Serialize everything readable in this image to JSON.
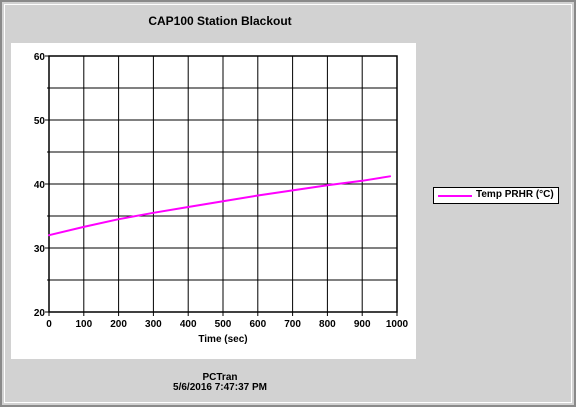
{
  "chart_data": {
    "type": "line",
    "title": "CAP100 Station Blackout",
    "xlabel": "Time (sec)",
    "ylabel": "",
    "xlim": [
      0,
      1000
    ],
    "ylim": [
      20,
      60
    ],
    "x_ticks": [
      0,
      100,
      200,
      300,
      400,
      500,
      600,
      700,
      800,
      900,
      1000
    ],
    "y_ticks": [
      20,
      30,
      40,
      50,
      60
    ],
    "grid": true,
    "legend_placement": "right",
    "series": [
      {
        "name": "Temp PRHR (°C)",
        "color": "#ff00ff",
        "x": [
          0,
          100,
          200,
          300,
          400,
          500,
          600,
          700,
          800,
          900,
          980
        ],
        "y": [
          32.0,
          33.3,
          34.5,
          35.5,
          36.4,
          37.3,
          38.2,
          39.0,
          39.8,
          40.5,
          41.2
        ]
      }
    ]
  },
  "footer": {
    "program": "PCTran",
    "timestamp": "5/6/2016 7:47:37 PM"
  }
}
